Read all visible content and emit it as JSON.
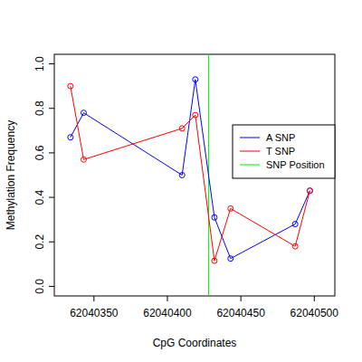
{
  "chart_data": {
    "type": "line",
    "x_label": "CpG Coordinates",
    "y_label": "Methylation Frequency",
    "marker": "circle",
    "legend": "right",
    "xlim": [
      62040323,
      62040514
    ],
    "ylim": [
      -0.043,
      1.043
    ],
    "xticks": [
      62040350,
      62040400,
      62040450,
      62040500
    ],
    "yticks": [
      {
        "value": 0,
        "label": "0.0"
      },
      0.2,
      0.4,
      0.6,
      0.8,
      {
        "value": 1,
        "label": "1.0"
      }
    ],
    "series": [
      {
        "name": "A SNP",
        "color": "#0000ff",
        "x": [
          62040334,
          62040343,
          62040410,
          62040419,
          62040432,
          62040443,
          62040487,
          62040497
        ],
        "values": [
          0.67,
          0.78,
          0.5,
          0.93,
          0.31,
          0.125,
          0.28,
          0.43
        ]
      },
      {
        "name": "T SNP",
        "color": "#ff0000",
        "x": [
          62040334,
          62040343,
          62040410,
          62040419,
          62040432,
          62040443,
          62040487,
          62040497
        ],
        "values": [
          0.9,
          0.57,
          0.71,
          0.77,
          0.115,
          0.35,
          0.18,
          0.43
        ]
      }
    ],
    "vlines": [
      {
        "name": "SNP Position",
        "color": "#00ee00",
        "x": 62040428
      }
    ]
  }
}
